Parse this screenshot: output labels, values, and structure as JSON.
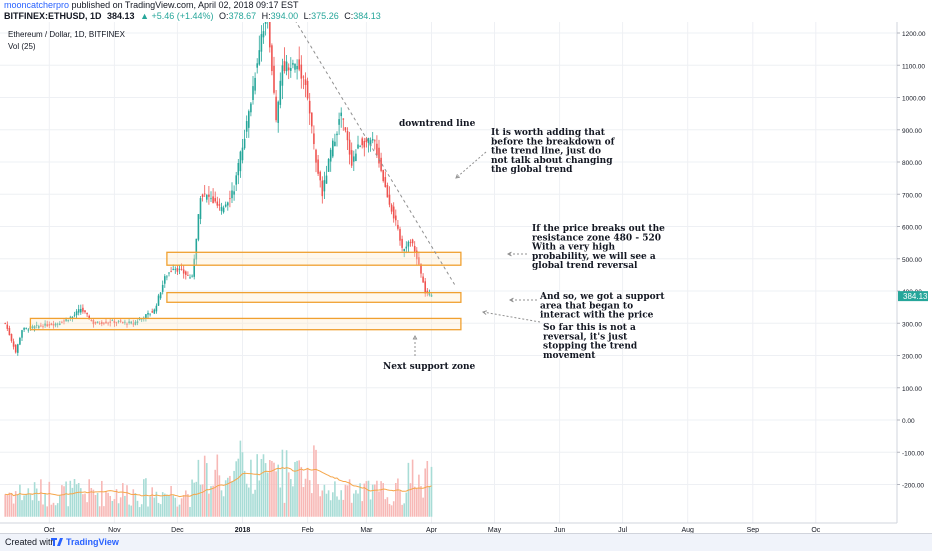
{
  "header": {
    "author": "mooncatcherpro",
    "published_text": " published on TradingView.com, April 02, 2018 09:17 EST",
    "symbol": "BITFINEX:ETHUSD, 1D",
    "last": "384.13",
    "change": "▲ +5.46 (+1.44%)",
    "o_label": "O:",
    "o_value": "378.67",
    "h_label": "H:",
    "h_value": "394.00",
    "l_label": "L:",
    "l_value": "375.26",
    "c_label": "C:",
    "c_value": "384.13"
  },
  "footer": {
    "created_with": "Created with",
    "brand": "TradingView"
  },
  "colors": {
    "up": "#26a69a",
    "down": "#ef5350",
    "zone": "#f0a030",
    "ma": "#f5a64a",
    "grid": "#eef0f4"
  },
  "chart_data": {
    "type": "candlestick",
    "legend": [
      "Ethereum / Dollar, 1D, BITFINEX",
      "Vol (25)"
    ],
    "y_ticks": [
      "1200.00",
      "1100.00",
      "1000.00",
      "900.00",
      "800.00",
      "700.00",
      "600.00",
      "500.00",
      "400.00",
      "300.00",
      "200.00",
      "100.00",
      "0.00",
      "-100.00",
      "-200.00"
    ],
    "y_tick_values": [
      1200,
      1100,
      1000,
      900,
      800,
      700,
      600,
      500,
      400,
      300,
      200,
      100,
      0,
      -100,
      -200
    ],
    "ylim": [
      -310,
      1230
    ],
    "x_ticks": [
      "Oct",
      "Nov",
      "Dec",
      "2018",
      "Feb",
      "Mar",
      "Apr",
      "May",
      "Jun",
      "Jul",
      "Aug",
      "Sep",
      "Oc"
    ],
    "x_tick_dates": [
      "2017-10-01",
      "2017-11-01",
      "2017-12-01",
      "2018-01-01",
      "2018-02-01",
      "2018-03-01",
      "2018-04-01",
      "2018-05-01",
      "2018-06-01",
      "2018-07-01",
      "2018-08-01",
      "2018-09-01",
      "2018-10-01"
    ],
    "last_price_label": "384.13",
    "last_price": 384.13,
    "price_path": [
      [
        "2017-09-10",
        300
      ],
      [
        "2017-09-14",
        230
      ],
      [
        "2017-09-15",
        210
      ],
      [
        "2017-09-18",
        280
      ],
      [
        "2017-09-25",
        290
      ],
      [
        "2017-10-05",
        300
      ],
      [
        "2017-10-12",
        320
      ],
      [
        "2017-10-16",
        345
      ],
      [
        "2017-10-22",
        300
      ],
      [
        "2017-10-31",
        305
      ],
      [
        "2017-11-10",
        300
      ],
      [
        "2017-11-20",
        340
      ],
      [
        "2017-11-25",
        440
      ],
      [
        "2017-11-29",
        475
      ],
      [
        "2017-12-03",
        460
      ],
      [
        "2017-12-08",
        440
      ],
      [
        "2017-12-12",
        700
      ],
      [
        "2017-12-16",
        690
      ],
      [
        "2017-12-22",
        650
      ],
      [
        "2017-12-28",
        720
      ],
      [
        "2018-01-04",
        950
      ],
      [
        "2018-01-10",
        1200
      ],
      [
        "2018-01-13",
        1260
      ],
      [
        "2018-01-17",
        920
      ],
      [
        "2018-01-20",
        1100
      ],
      [
        "2018-01-27",
        1100
      ],
      [
        "2018-01-31",
        1050
      ],
      [
        "2018-02-05",
        800
      ],
      [
        "2018-02-08",
        700
      ],
      [
        "2018-02-12",
        830
      ],
      [
        "2018-02-17",
        950
      ],
      [
        "2018-02-22",
        800
      ],
      [
        "2018-02-26",
        860
      ],
      [
        "2018-03-05",
        860
      ],
      [
        "2018-03-10",
        720
      ],
      [
        "2018-03-15",
        610
      ],
      [
        "2018-03-18",
        530
      ],
      [
        "2018-03-22",
        560
      ],
      [
        "2018-03-26",
        480
      ],
      [
        "2018-03-29",
        395
      ],
      [
        "2018-04-01",
        384
      ]
    ],
    "zones": [
      {
        "label": "resistance 480 - 520",
        "low": 480,
        "high": 520,
        "start": "2017-11-26",
        "end": "2018-04-15"
      },
      {
        "label": "support",
        "low": 365,
        "high": 395,
        "start": "2017-11-26",
        "end": "2018-04-15"
      },
      {
        "label": "next support",
        "low": 280,
        "high": 315,
        "start": "2017-09-22",
        "end": "2018-04-15"
      }
    ],
    "trendline": {
      "start": [
        "2018-01-26",
        1240
      ],
      "end": [
        "2018-04-12",
        420
      ]
    },
    "annotations": [
      {
        "lines": [
          "downtrend line"
        ]
      },
      {
        "lines": [
          "It is worth adding that",
          "before the breakdown of",
          "the trend line, just do",
          "not talk about changing",
          "the global trend"
        ]
      },
      {
        "lines": [
          "If the price breaks out the",
          "resistance zone 480 - 520",
          "With a very high",
          "probability, we will see a",
          "global trend reversal"
        ]
      },
      {
        "lines": [
          "And so, we got a support",
          "area that began to",
          "interact with the price"
        ]
      },
      {
        "lines": [
          "So far this is not a",
          "reversal, it's just",
          "stopping the trend",
          "movement"
        ]
      },
      {
        "lines": [
          "Next support zone"
        ]
      }
    ]
  }
}
